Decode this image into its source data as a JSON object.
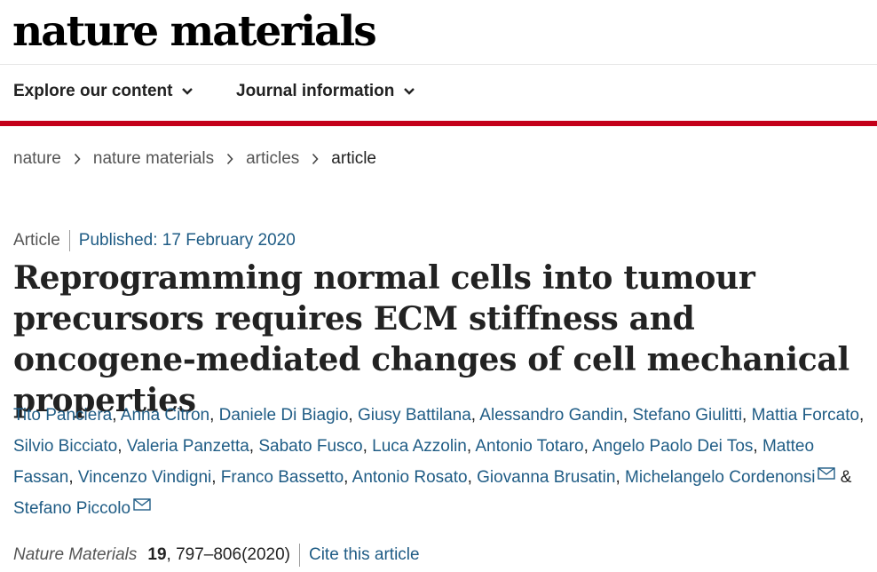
{
  "header": {
    "brand": "nature materials"
  },
  "nav": {
    "items": [
      {
        "label": "Explore our content"
      },
      {
        "label": "Journal information"
      }
    ]
  },
  "colors": {
    "accent_red": "#c4001a",
    "link_blue": "#1f5c85",
    "text": "#222222"
  },
  "breadcrumb": [
    "nature",
    "nature materials",
    "articles",
    "article"
  ],
  "meta": {
    "type": "Article",
    "published": "Published: 17 February 2020"
  },
  "title": "Reprogramming normal cells into tumour precursors requires ECM stiffness and oncogene-mediated changes of cell mechanical properties",
  "authors": [
    "Tito Panciera",
    "Anna Citron",
    "Daniele Di Biagio",
    "Giusy Battilana",
    "Alessandro Gandin",
    "Stefano Giulitti",
    "Mattia Forcato",
    "Silvio Bicciato",
    "Valeria Panzetta",
    "Sabato Fusco",
    "Luca Azzolin",
    "Antonio Totaro",
    "Angelo Paolo Dei Tos",
    "Matteo Fassan",
    "Vincenzo Vindigni",
    "Franco Bassetto",
    "Antonio Rosato",
    "Giovanna Brusatin",
    "Michelangelo Cordenonsi",
    "Stefano Piccolo"
  ],
  "citation": {
    "journal": "Nature Materials",
    "volume": "19",
    "pages": ", 797–806",
    "year": "(2020)",
    "cite_label": "Cite this article"
  }
}
